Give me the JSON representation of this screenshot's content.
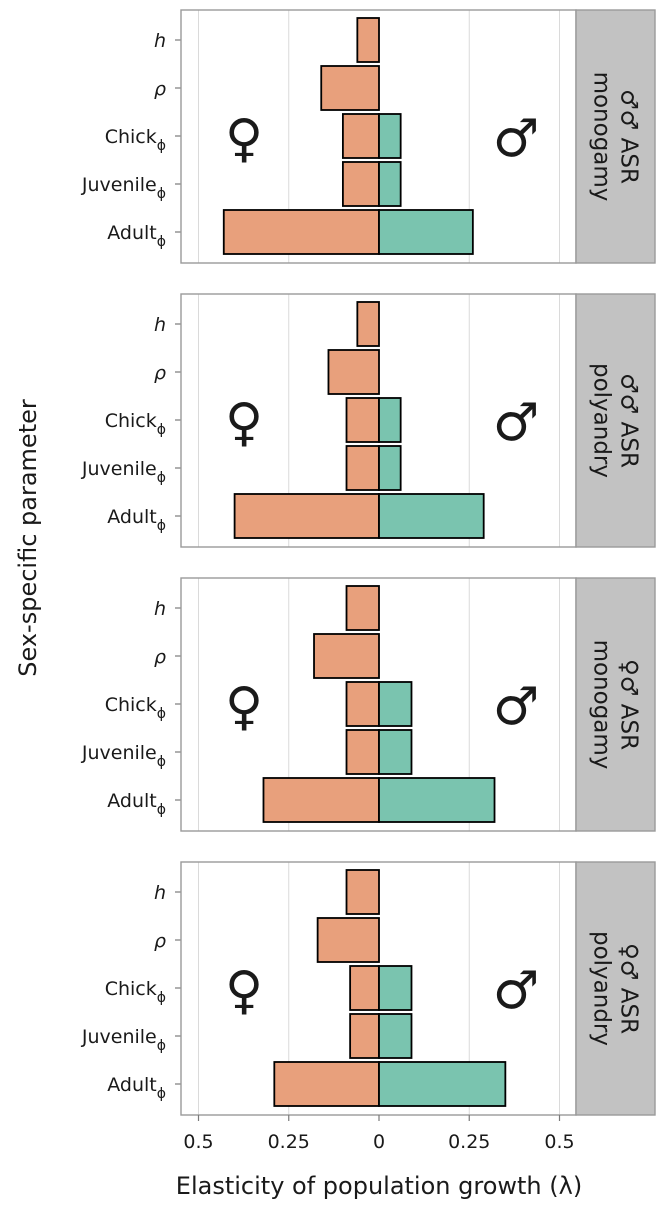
{
  "chart_data": {
    "type": "bar",
    "xlabel": "Elasticity of population growth (λ)",
    "ylabel": "Sex-specific parameter",
    "xlim": [
      -0.5,
      0.5
    ],
    "x_ticks": [
      {
        "value": -0.5,
        "label": "0.5"
      },
      {
        "value": -0.25,
        "label": "0.25"
      },
      {
        "value": 0,
        "label": "0"
      },
      {
        "value": 0.25,
        "label": "0.25"
      },
      {
        "value": 0.5,
        "label": "0.5"
      }
    ],
    "categories": [
      {
        "main": "h",
        "sub": ""
      },
      {
        "main": "ρ",
        "sub": ""
      },
      {
        "main": "Chick",
        "sub": "ϕ"
      },
      {
        "main": "Juvenile",
        "sub": "ϕ"
      },
      {
        "main": "Adult",
        "sub": "ϕ"
      }
    ],
    "grid": true,
    "female_symbol": "♀",
    "male_symbol": "♂",
    "colors": {
      "female": "#E8A07C",
      "male": "#7AC4AF",
      "strip": "#C2C2C2",
      "grid": "#DADADA",
      "panel_border": "#9A9A9A"
    },
    "panels": [
      {
        "strip": [
          "♂♂ ASR",
          "monogamy"
        ],
        "series": [
          {
            "name": "Female",
            "values": [
              0.06,
              0.16,
              0.1,
              0.1,
              0.43
            ]
          },
          {
            "name": "Male",
            "values": [
              0,
              0,
              0.06,
              0.06,
              0.26
            ]
          }
        ]
      },
      {
        "strip": [
          "♂♂ ASR",
          "polyandry"
        ],
        "series": [
          {
            "name": "Female",
            "values": [
              0.06,
              0.14,
              0.09,
              0.09,
              0.4
            ]
          },
          {
            "name": "Male",
            "values": [
              0,
              0,
              0.06,
              0.06,
              0.29
            ]
          }
        ]
      },
      {
        "strip": [
          "♀♂ ASR",
          "monogamy"
        ],
        "series": [
          {
            "name": "Female",
            "values": [
              0.09,
              0.18,
              0.09,
              0.09,
              0.32
            ]
          },
          {
            "name": "Male",
            "values": [
              0,
              0,
              0.09,
              0.09,
              0.32
            ]
          }
        ]
      },
      {
        "strip": [
          "♀♂ ASR",
          "polyandry"
        ],
        "series": [
          {
            "name": "Female",
            "values": [
              0.09,
              0.17,
              0.08,
              0.08,
              0.29
            ]
          },
          {
            "name": "Male",
            "values": [
              0,
              0,
              0.09,
              0.09,
              0.35
            ]
          }
        ]
      }
    ]
  }
}
